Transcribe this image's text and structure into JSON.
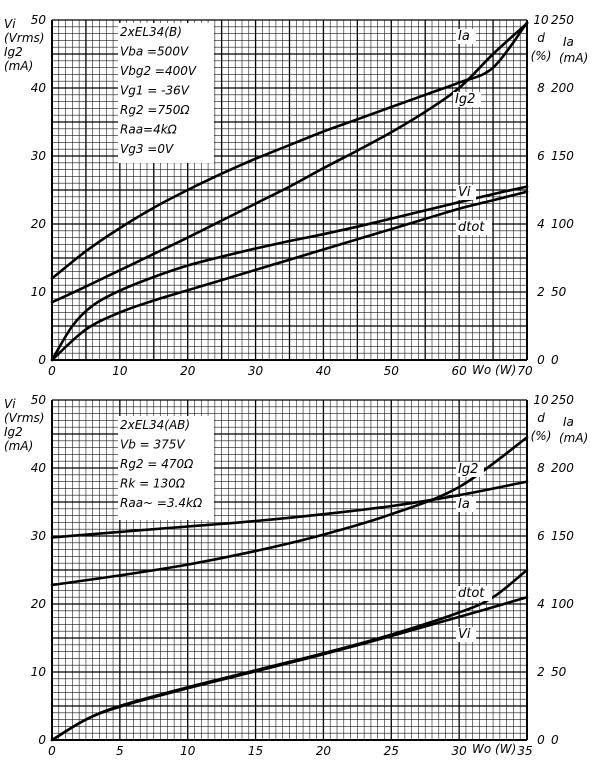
{
  "chart_data": [
    {
      "type": "line",
      "xlabel": "Wo (W)",
      "xlim": [
        0,
        70
      ],
      "x_ticks": [
        "0",
        "10",
        "20",
        "30",
        "40",
        "50",
        "60",
        "70"
      ],
      "left_axis": {
        "labels": [
          "Vi",
          "(Vrms)",
          "Ig2",
          "(mA)"
        ],
        "ylim": [
          0,
          50
        ],
        "ticks": [
          "0",
          "10",
          "20",
          "30",
          "40",
          "50"
        ]
      },
      "right_axis_d": {
        "labels": [
          "d",
          "(%)"
        ],
        "ylim": [
          0,
          10
        ],
        "ticks": [
          "0",
          "2",
          "4",
          "6",
          "8",
          "10"
        ]
      },
      "right_axis_ia": {
        "labels": [
          "Ia",
          "(mA)"
        ],
        "ylim": [
          0,
          250
        ],
        "ticks": [
          "0",
          "50",
          "100",
          "150",
          "200",
          "250"
        ]
      },
      "info_box": [
        "2xEL34(B)",
        "Vba =500V",
        "Vbg2 =400V",
        "Vg1 = -36V",
        "Rg2 =750Ω",
        "Raa=4kΩ",
        "Vg3 =0V"
      ],
      "series": [
        {
          "name": "Ia",
          "axis": "Ia (mA)",
          "x": [
            0,
            5,
            10,
            15,
            20,
            25,
            30,
            35,
            40,
            45,
            50,
            55,
            60,
            65,
            70
          ],
          "y": [
            60,
            80,
            97,
            112,
            125,
            137,
            148,
            158,
            168,
            177,
            186,
            195,
            204,
            215,
            248
          ]
        },
        {
          "name": "Ig2",
          "axis": "Ig2 (mA)",
          "x": [
            0,
            5,
            10,
            15,
            20,
            25,
            30,
            35,
            40,
            45,
            50,
            55,
            60,
            65,
            70
          ],
          "y": [
            8.5,
            10.8,
            13.2,
            15.6,
            18,
            20.5,
            23,
            25.5,
            28.2,
            30.8,
            33.5,
            36.5,
            40,
            45,
            49.5
          ]
        },
        {
          "name": "Vi",
          "axis": "Vi (Vrms)",
          "x": [
            0,
            3,
            6,
            10,
            15,
            20,
            25,
            30,
            35,
            40,
            45,
            50,
            55,
            60,
            65,
            70
          ],
          "y": [
            0,
            5,
            8,
            10.2,
            12.2,
            13.9,
            15.2,
            16.4,
            17.5,
            18.5,
            19.6,
            20.8,
            22,
            23.2,
            24.4,
            25.5
          ]
        },
        {
          "name": "dtot",
          "axis": "d (%)",
          "x": [
            0,
            5,
            10,
            15,
            20,
            25,
            30,
            35,
            40,
            45,
            50,
            55,
            60,
            65,
            70
          ],
          "y": [
            0,
            0.9,
            1.4,
            1.75,
            2.05,
            2.35,
            2.65,
            2.95,
            3.25,
            3.55,
            3.85,
            4.15,
            4.45,
            4.7,
            4.95
          ]
        }
      ]
    },
    {
      "type": "line",
      "xlabel": "Wo (W)",
      "xlim": [
        0,
        35
      ],
      "x_ticks": [
        "0",
        "5",
        "10",
        "15",
        "20",
        "25",
        "30",
        "35"
      ],
      "left_axis": {
        "labels": [
          "Vi",
          "(Vrms)",
          "Ig2",
          "(mA)"
        ],
        "ylim": [
          0,
          50
        ],
        "ticks": [
          "0",
          "10",
          "20",
          "30",
          "40",
          "50"
        ]
      },
      "right_axis_d": {
        "labels": [
          "d",
          "(%)"
        ],
        "ylim": [
          0,
          10
        ],
        "ticks": [
          "0",
          "2",
          "4",
          "6",
          "8",
          "10"
        ]
      },
      "right_axis_ia": {
        "labels": [
          "Ia",
          "(mA)"
        ],
        "ylim": [
          0,
          250
        ],
        "ticks": [
          "0",
          "50",
          "100",
          "150",
          "200",
          "250"
        ]
      },
      "info_box": [
        "2xEL34(AB)",
        "Vb = 375V",
        "Rg2 = 470Ω",
        "Rk = 130Ω",
        "Raa~ =3.4kΩ"
      ],
      "series": [
        {
          "name": "Ia",
          "axis": "Ia (mA)",
          "x": [
            0,
            5,
            10,
            15,
            20,
            25,
            30,
            35
          ],
          "y": [
            149,
            153,
            157,
            161,
            166,
            172,
            180,
            190
          ]
        },
        {
          "name": "Ig2",
          "axis": "Ig2 (mA)",
          "x": [
            0,
            5,
            10,
            15,
            20,
            25,
            30,
            35
          ],
          "y": [
            22.8,
            24.2,
            25.8,
            27.8,
            30.2,
            33.2,
            37.2,
            44.5
          ]
        },
        {
          "name": "dtot",
          "axis": "d (%)",
          "x": [
            0,
            2.5,
            5,
            10,
            15,
            20,
            25,
            30,
            32.5,
            35
          ],
          "y": [
            0,
            0.6,
            1.0,
            1.55,
            2.05,
            2.55,
            3.1,
            3.75,
            4.2,
            5.0
          ]
        },
        {
          "name": "Vi",
          "axis": "Vi (Vrms)",
          "x": [
            0,
            2.5,
            5,
            10,
            15,
            20,
            25,
            30,
            35
          ],
          "y": [
            0,
            3,
            4.9,
            7.6,
            10.1,
            12.6,
            15.3,
            18.1,
            21
          ]
        }
      ]
    }
  ]
}
